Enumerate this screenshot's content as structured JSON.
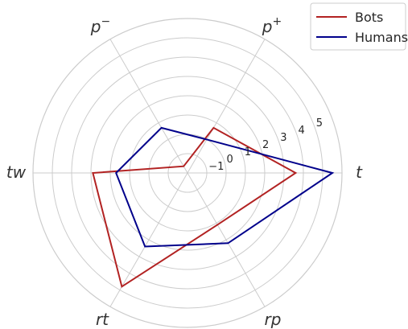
{
  "chart_data": {
    "type": "radar",
    "axes": [
      {
        "main": "t",
        "sup": ""
      },
      {
        "main": "p",
        "sup": "+"
      },
      {
        "main": "p",
        "sup": "−"
      },
      {
        "main": "tw",
        "sup": ""
      },
      {
        "main": "rt",
        "sup": ""
      },
      {
        "main": "rp",
        "sup": ""
      }
    ],
    "radial_ticks": [
      "−1",
      "0",
      "1",
      "2",
      "3",
      "4",
      "5"
    ],
    "radial_tick_values": [
      -1,
      0,
      1,
      2,
      3,
      4,
      5
    ],
    "r_range": [
      -2,
      6
    ],
    "grid": true,
    "legend_position": "top-right",
    "series": [
      {
        "name": "Bots",
        "color": "#b22222",
        "values": [
          3.6,
          0.7,
          -1.6,
          2.9,
          4.8,
          1.1
        ]
      },
      {
        "name": "Humans",
        "color": "#00008b",
        "values": [
          5.5,
          0.0,
          0.7,
          1.7,
          2.4,
          2.2
        ]
      }
    ]
  }
}
